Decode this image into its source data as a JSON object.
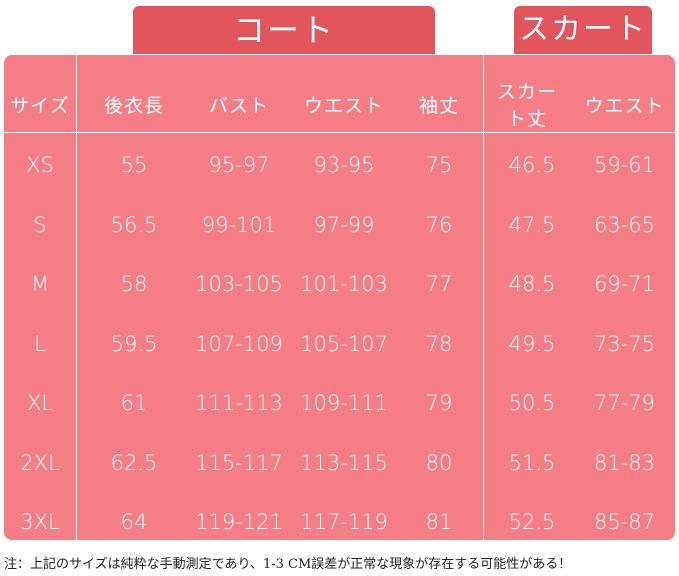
{
  "headers": {
    "coat_group": "コート",
    "skirt_group": "スカート"
  },
  "columns": [
    "サイズ",
    "後衣長",
    "バスト",
    "ウエスト",
    "袖丈",
    "スカート丈",
    "ウエスト"
  ],
  "rows": [
    {
      "size": "XS",
      "length": "55",
      "bust": "95-97",
      "waist": "93-95",
      "sleeve": "75",
      "skirt_length": "46.5",
      "skirt_waist": "59-61"
    },
    {
      "size": "S",
      "length": "56.5",
      "bust": "99-101",
      "waist": "97-99",
      "sleeve": "76",
      "skirt_length": "47.5",
      "skirt_waist": "63-65"
    },
    {
      "size": "M",
      "length": "58",
      "bust": "103-105",
      "waist": "101-103",
      "sleeve": "77",
      "skirt_length": "48.5",
      "skirt_waist": "69-71"
    },
    {
      "size": "L",
      "length": "59.5",
      "bust": "107-109",
      "waist": "105-107",
      "sleeve": "78",
      "skirt_length": "49.5",
      "skirt_waist": "73-75"
    },
    {
      "size": "XL",
      "length": "61",
      "bust": "111-113",
      "waist": "109-111",
      "sleeve": "79",
      "skirt_length": "50.5",
      "skirt_waist": "77-79"
    },
    {
      "size": "2XL",
      "length": "62.5",
      "bust": "115-117",
      "waist": "113-115",
      "sleeve": "80",
      "skirt_length": "51.5",
      "skirt_waist": "81-83"
    },
    {
      "size": "3XL",
      "length": "64",
      "bust": "119-121",
      "waist": "117-119",
      "sleeve": "81",
      "skirt_length": "52.5",
      "skirt_waist": "85-87"
    }
  ],
  "note": "注：上記のサイズは純粋な手動測定であり、1-3 CM誤差が正常な現象が存在する可能性がある！",
  "colors": {
    "tab": "#e2555c",
    "panel": "#f57e86",
    "text": "#ffffff"
  }
}
